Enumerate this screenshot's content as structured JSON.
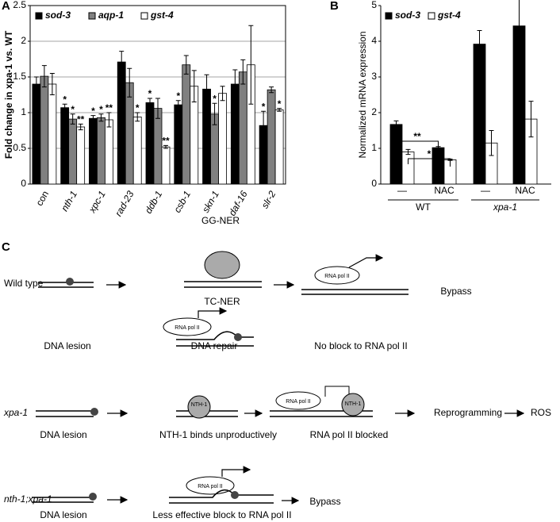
{
  "chart_data": [
    {
      "type": "bar",
      "panel": "A",
      "ylabel": "Fold change in xpa-1 vs. WT",
      "categories": [
        "con",
        "nth-1",
        "xpc-1",
        "rad-23",
        "ddb-1",
        "csb-1",
        "skn-1",
        "daf-16",
        "slr-2"
      ],
      "series": [
        {
          "name": "sod-3",
          "color": "#000000",
          "values": [
            1.4,
            1.07,
            0.92,
            1.71,
            1.14,
            1.11,
            1.33,
            1.4,
            0.82
          ],
          "errors": [
            0.1,
            0.05,
            0.04,
            0.15,
            0.06,
            0.06,
            0.2,
            0.2,
            0.2
          ],
          "stars": [
            null,
            "*",
            "*",
            null,
            "*",
            "*",
            null,
            null,
            "*"
          ]
        },
        {
          "name": "aqp-1",
          "color": "#808080",
          "values": [
            1.51,
            0.91,
            0.93,
            1.42,
            1.06,
            1.67,
            0.98,
            1.57,
            1.32
          ],
          "errors": [
            0.15,
            0.07,
            0.05,
            0.2,
            0.14,
            0.13,
            0.15,
            0.17,
            0.04
          ],
          "stars": [
            null,
            "*",
            "*",
            null,
            null,
            null,
            "*",
            null,
            null
          ]
        },
        {
          "name": "gst-4",
          "color": "#ffffff",
          "values": [
            1.4,
            0.8,
            0.9,
            0.94,
            0.52,
            1.37,
            1.27,
            1.67,
            1.04
          ],
          "errors": [
            0.15,
            0.04,
            0.1,
            0.06,
            0.02,
            0.22,
            0.1,
            0.55,
            0.02
          ],
          "stars": [
            null,
            "**",
            "**",
            "*",
            "**",
            null,
            null,
            null,
            "*"
          ]
        }
      ],
      "ylim": [
        0,
        2.5
      ],
      "yticks": [
        0,
        0.5,
        1,
        1.5,
        2,
        2.5
      ],
      "grid": true
    },
    {
      "type": "bar",
      "panel": "B",
      "ylabel": "Normalized mRNA expression",
      "categories": [
        "—",
        "NAC",
        "—",
        "NAC"
      ],
      "groups": [
        {
          "name": "WT"
        },
        {
          "name": "xpa-1"
        }
      ],
      "series": [
        {
          "name": "sod-3",
          "color": "#000000",
          "values": [
            1.67,
            1.02,
            3.92,
            4.43
          ],
          "errors": [
            0.1,
            0.03,
            0.38,
            0.92
          ]
        },
        {
          "name": "gst-4",
          "color": "#ffffff",
          "values": [
            0.9,
            0.68,
            1.15,
            1.82
          ],
          "errors": [
            0.07,
            0.02,
            0.35,
            0.5
          ]
        }
      ],
      "significance": [
        {
          "label": "**"
        },
        {
          "label": "*"
        }
      ],
      "ylim": [
        0,
        5
      ],
      "yticks": [
        0,
        1,
        2,
        3,
        4,
        5
      ],
      "grid": false
    }
  ],
  "diagram": {
    "panel": "C",
    "wild_type": {
      "label": "Wild type",
      "lesion": "DNA lesion",
      "ggner": "GG-NER",
      "tcner": "TC-NER",
      "polymerase": "RNA pol II",
      "repair": "DNA repair",
      "bypass_polymerase": "RNA pol II",
      "no_block": "No block to RNA pol II",
      "outcome": "Bypass"
    },
    "xpa1": {
      "label": "xpa-1",
      "lesion": "DNA lesion",
      "nth1": "NTH-1",
      "binds": "NTH-1 binds unproductively",
      "polymerase": "RNA pol II",
      "nth1_blocked": "NTH-1",
      "blocked": "RNA pol II blocked",
      "reprogramming": "Reprogramming",
      "ros": "ROS"
    },
    "double": {
      "label": "nth-1;xpa-1",
      "lesion": "DNA lesion",
      "polymerase": "RNA pol II",
      "less_block": "Less effective block to RNA pol II",
      "outcome": "Bypass"
    }
  }
}
